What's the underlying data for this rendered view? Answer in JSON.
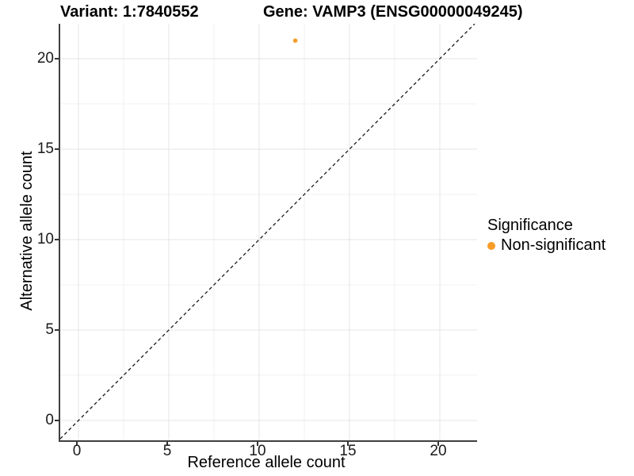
{
  "titles": {
    "variant": "Variant: 1:7840552",
    "gene": "Gene: VAMP3 (ENSG00000049245)"
  },
  "chart_data": {
    "type": "scatter",
    "title_left": "Variant: 1:7840552",
    "title_right": "Gene: VAMP3 (ENSG00000049245)",
    "xlabel": "Reference allele count",
    "ylabel": "Alternative allele count",
    "x_ticks": [
      0,
      5,
      10,
      15,
      20
    ],
    "y_ticks": [
      0,
      5,
      10,
      15,
      20
    ],
    "xlim": [
      -1.05,
      22.05
    ],
    "ylim": [
      -1.05,
      22.05
    ],
    "grid": "major and minor, light gray, on white background",
    "points": [
      {
        "x": 12,
        "y": 21,
        "significance": "Non-significant"
      }
    ],
    "reference_line": {
      "kind": "identity y=x",
      "style": "dashed",
      "color": "#161616"
    },
    "legend": {
      "title": "Significance",
      "position": "right",
      "items": [
        {
          "label": "Non-significant",
          "color": "#F89C27"
        }
      ]
    },
    "colors": {
      "point": "#F89C27",
      "axis_line": "#3F3F3F",
      "grid_major": "#E4E4E4",
      "grid_minor": "#F2F2F2"
    }
  }
}
